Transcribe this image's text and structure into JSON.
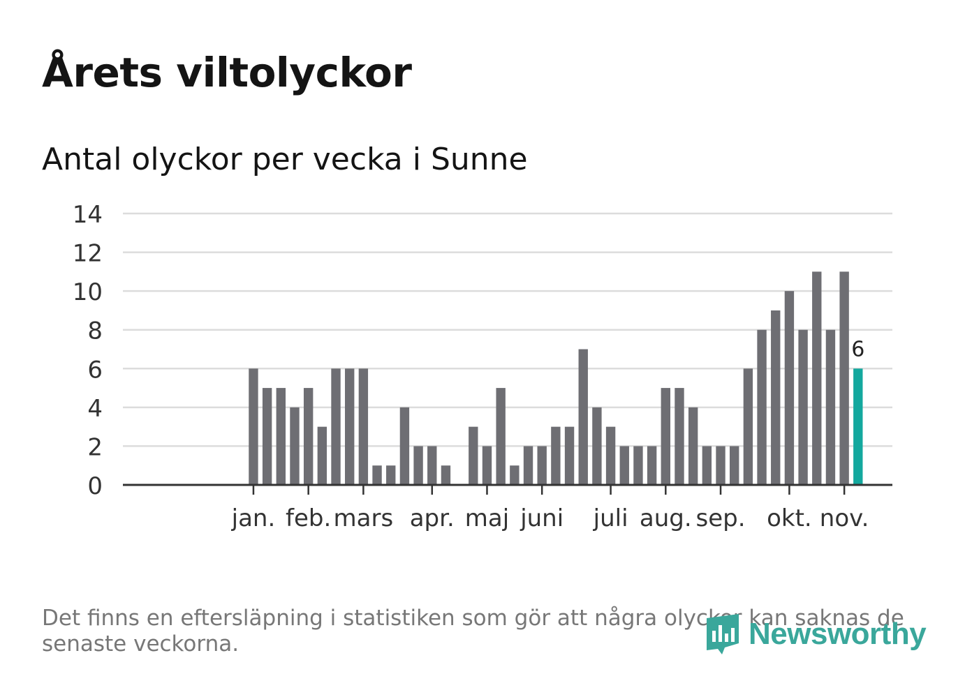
{
  "title": "Årets viltolyckor",
  "subtitle": "Antal olyckor per vecka i Sunne",
  "footnote": "Det finns en eftersläpning i statistiken som gör att några olyckor kan saknas de senaste veckorna.",
  "brand": "Newsworthy",
  "colors": {
    "bar": "#6e6e73",
    "highlight": "#13a89e",
    "grid": "#dcdcdc",
    "axis": "#333333",
    "text": "#333333"
  },
  "chart_data": {
    "type": "bar",
    "title": "Antal olyckor per vecka i Sunne",
    "xlabel": "",
    "ylabel": "",
    "ylim": [
      0,
      14
    ],
    "yticks": [
      0,
      2,
      4,
      6,
      8,
      10,
      12,
      14
    ],
    "grid": true,
    "weeks": [
      1,
      2,
      3,
      4,
      5,
      6,
      7,
      8,
      9,
      10,
      11,
      12,
      13,
      14,
      15,
      16,
      17,
      18,
      19,
      20,
      21,
      22,
      23,
      24,
      25,
      26,
      27,
      28,
      29,
      30,
      31,
      32,
      33,
      34,
      35,
      36,
      37,
      38,
      39,
      40,
      41,
      42,
      43,
      44,
      45,
      46,
      47,
      48,
      49,
      50,
      51,
      52,
      53,
      54,
      55,
      56
    ],
    "values": [
      0,
      0,
      0,
      0,
      0,
      0,
      0,
      0,
      0,
      6,
      5,
      5,
      4,
      5,
      3,
      6,
      6,
      6,
      1,
      1,
      4,
      2,
      2,
      1,
      0,
      3,
      2,
      5,
      1,
      2,
      2,
      3,
      3,
      7,
      4,
      3,
      2,
      2,
      2,
      5,
      5,
      4,
      2,
      2,
      2,
      6,
      8,
      9,
      10,
      8,
      11,
      8,
      11,
      6,
      0,
      0
    ],
    "highlight_index": 53,
    "highlight_label": "6",
    "month_labels": [
      {
        "label": "jan.",
        "week": 10
      },
      {
        "label": "feb.",
        "week": 14
      },
      {
        "label": "mars",
        "week": 18
      },
      {
        "label": "apr.",
        "week": 23
      },
      {
        "label": "maj",
        "week": 27
      },
      {
        "label": "juni",
        "week": 31
      },
      {
        "label": "juli",
        "week": 36
      },
      {
        "label": "aug.",
        "week": 40
      },
      {
        "label": "sep.",
        "week": 44
      },
      {
        "label": "okt.",
        "week": 49
      },
      {
        "label": "nov.",
        "week": 53
      }
    ]
  }
}
